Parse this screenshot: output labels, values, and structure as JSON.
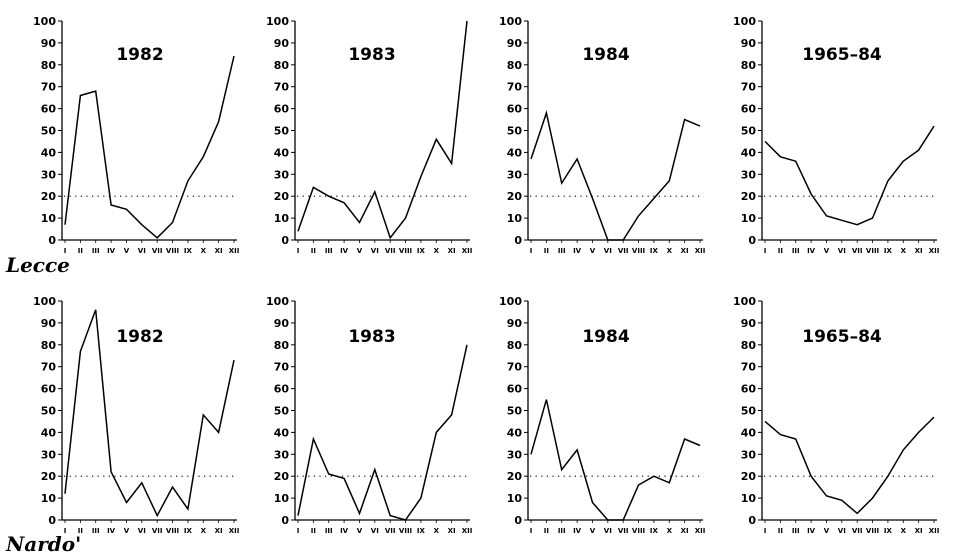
{
  "months": [
    "I",
    "II",
    "III",
    "IV",
    "V",
    "VI",
    "VII",
    "VIII",
    "IX",
    "X",
    "XI",
    "XII"
  ],
  "y_ticks": [
    "0",
    "10",
    "20",
    "30",
    "40",
    "50",
    "60",
    "70",
    "80",
    "90",
    "100"
  ],
  "chart_data": [
    {
      "type": "line",
      "station": "Lecce",
      "title": "1982",
      "ylim": [
        0,
        100
      ],
      "reference_line": 20,
      "categories": [
        "I",
        "II",
        "III",
        "IV",
        "V",
        "VI",
        "VII",
        "VIII",
        "IX",
        "X",
        "XI",
        "XII"
      ],
      "values": [
        7,
        66,
        68,
        16,
        14,
        7,
        1,
        8,
        27,
        38,
        54,
        84
      ]
    },
    {
      "type": "line",
      "station": "Lecce",
      "title": "1983",
      "ylim": [
        0,
        100
      ],
      "reference_line": 20,
      "categories": [
        "I",
        "II",
        "III",
        "IV",
        "V",
        "VI",
        "VII",
        "VIII",
        "IX",
        "X",
        "XI",
        "XII"
      ],
      "values": [
        4,
        24,
        20,
        17,
        8,
        22,
        1,
        10,
        29,
        46,
        35,
        100
      ]
    },
    {
      "type": "line",
      "station": "Lecce",
      "title": "1984",
      "ylim": [
        0,
        100
      ],
      "reference_line": 20,
      "categories": [
        "I",
        "II",
        "III",
        "IV",
        "V",
        "VI",
        "VII",
        "VIII",
        "IX",
        "X",
        "XI",
        "XII"
      ],
      "values": [
        37,
        58,
        26,
        37,
        19,
        0,
        0,
        11,
        19,
        27,
        55,
        52
      ]
    },
    {
      "type": "line",
      "station": "Lecce",
      "title": "1965–84",
      "ylim": [
        0,
        100
      ],
      "reference_line": 20,
      "categories": [
        "I",
        "II",
        "III",
        "IV",
        "V",
        "VI",
        "VII",
        "VIII",
        "IX",
        "X",
        "XI",
        "XII"
      ],
      "values": [
        45,
        38,
        36,
        21,
        11,
        9,
        7,
        10,
        27,
        36,
        41,
        52
      ]
    },
    {
      "type": "line",
      "station": "Nardo'",
      "title": "1982",
      "ylim": [
        0,
        100
      ],
      "reference_line": 20,
      "categories": [
        "I",
        "II",
        "III",
        "IV",
        "V",
        "VI",
        "VII",
        "VIII",
        "IX",
        "X",
        "XI",
        "XII"
      ],
      "values": [
        12,
        77,
        96,
        22,
        8,
        17,
        2,
        15,
        5,
        48,
        40,
        73
      ]
    },
    {
      "type": "line",
      "station": "Nardo'",
      "title": "1983",
      "ylim": [
        0,
        100
      ],
      "reference_line": 20,
      "categories": [
        "I",
        "II",
        "III",
        "IV",
        "V",
        "VI",
        "VII",
        "VIII",
        "IX",
        "X",
        "XI",
        "XII"
      ],
      "values": [
        2,
        37,
        21,
        19,
        3,
        23,
        2,
        0,
        10,
        40,
        48,
        80
      ]
    },
    {
      "type": "line",
      "station": "Nardo'",
      "title": "1984",
      "ylim": [
        0,
        100
      ],
      "reference_line": 20,
      "categories": [
        "I",
        "II",
        "III",
        "IV",
        "V",
        "VI",
        "VII",
        "VIII",
        "IX",
        "X",
        "XI",
        "XII"
      ],
      "values": [
        30,
        55,
        23,
        32,
        8,
        0,
        0,
        16,
        20,
        17,
        37,
        34
      ]
    },
    {
      "type": "line",
      "station": "Nardo'",
      "title": "1965–84",
      "ylim": [
        0,
        100
      ],
      "reference_line": 20,
      "categories": [
        "I",
        "II",
        "III",
        "IV",
        "V",
        "VI",
        "VII",
        "VIII",
        "IX",
        "X",
        "XI",
        "XII"
      ],
      "values": [
        45,
        39,
        37,
        20,
        11,
        9,
        3,
        10,
        20,
        32,
        40,
        47
      ]
    }
  ],
  "stations": {
    "lecce": "Lecce",
    "nardo": "Nardo'"
  }
}
